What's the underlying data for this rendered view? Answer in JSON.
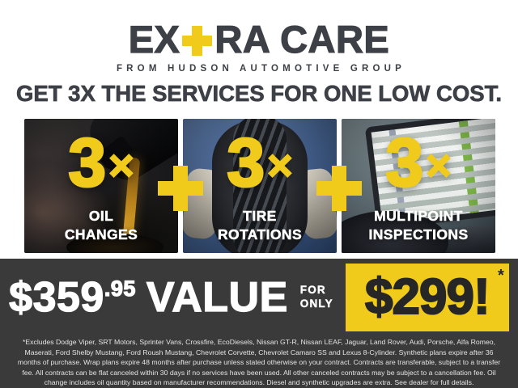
{
  "brand": {
    "logo_prefix": "EX",
    "logo_plus_symbol": "+",
    "logo_suffix": "RA CARE",
    "tagline": "FROM HUDSON AUTOMOTIVE GROUP"
  },
  "headline": "GET 3X THE SERVICES FOR ONE LOW COST.",
  "services": [
    {
      "multiplier": "3",
      "times_symbol": "×",
      "label_lines": [
        "OIL",
        "CHANGES"
      ],
      "photo": "oil-pouring-from-bottle-photo"
    },
    {
      "multiplier": "3",
      "times_symbol": "×",
      "label_lines": [
        "TIRE",
        "ROTATIONS"
      ],
      "photo": "technician-holding-tire-photo"
    },
    {
      "multiplier": "3",
      "times_symbol": "×",
      "label_lines": [
        "MULTIPOINT",
        "INSPECTIONS"
      ],
      "photo": "laptop-inspection-checklist-photo"
    }
  ],
  "icons": {
    "plus_separator": "+"
  },
  "offer": {
    "value_dollars": "$359",
    "value_cents": ".95",
    "value_word": "VALUE",
    "for_word": "FOR",
    "only_word": "ONLY",
    "sale_price": "$299!",
    "footnote_marker": "*"
  },
  "disclaimer": "*Excludes Dodge Viper, SRT Motors, Sprinter Vans, Crossfire, EcoDiesels, Nissan GT-R, Nissan LEAF, Jaguar, Land Rover, Audi, Porsche, Alfa Romeo, Maserati, Ford Shelby Mustang, Ford Roush Mustang, Chevrolet Corvette, Chevrolet Camaro SS and Lexus 8-Cylinder. Synthetic plans expire after 36 months of purchase. Wrap plans expire 48 months after purchase unless stated otherwise on your contract. Contracts are transferable, subject to a transfer fee. All contracts can be flat canceled within 30 days if no services have been used. All other canceled contracts may be subject to a cancellation fee. Oil change includes oil quantity based on manufacturer recommendations. Diesel and synthetic upgrades are extra. See dealer for full details.",
  "colors": {
    "accent_yellow": "#F0CB1C",
    "band_charcoal": "#3A3A3A",
    "heading_charcoal": "#3D4046",
    "price_text_dark": "#262626"
  }
}
